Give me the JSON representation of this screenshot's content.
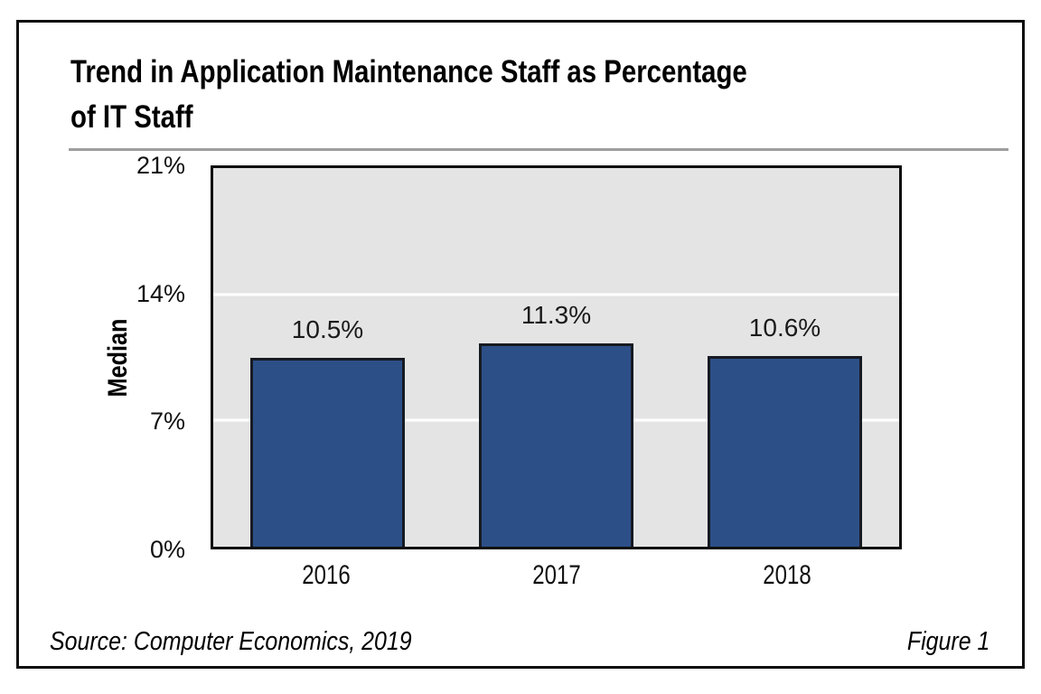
{
  "figure": {
    "title_lines": [
      "Trend in Application Maintenance Staff as Percentage",
      "of IT Staff"
    ],
    "source": "Source: Computer Economics, 2019",
    "figure_label": "Figure 1"
  },
  "chart_data": {
    "type": "bar",
    "title": "Trend in Application Maintenance Staff as Percentage of IT Staff",
    "categories": [
      "2016",
      "2017",
      "2018"
    ],
    "values": [
      10.5,
      11.3,
      10.6
    ],
    "value_labels": [
      "10.5%",
      "11.3%",
      "10.6%"
    ],
    "xlabel": "",
    "ylabel": "Median",
    "ylim": [
      0,
      21
    ],
    "yticks": [
      0,
      7,
      14,
      21
    ],
    "ytick_labels": [
      "0%",
      "7%",
      "14%",
      "21%"
    ],
    "grid": true,
    "legend": "none",
    "colors": {
      "bar_fill": "#2d4f87",
      "bar_border": "#161a22",
      "plot_background": "#e4e4e4",
      "gridline": "#ffffff",
      "text": "#000000",
      "title_rule": "#9e9e9e",
      "frame_border": "#0d0d0d"
    }
  }
}
